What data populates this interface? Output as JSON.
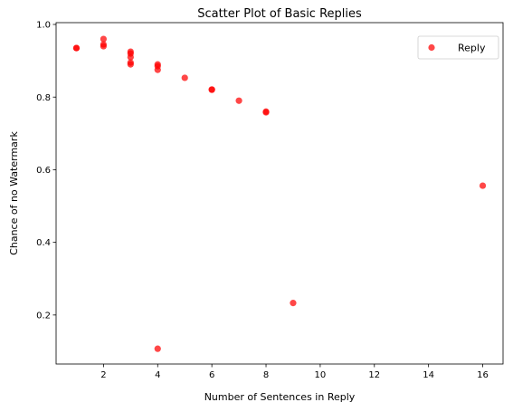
{
  "chart_data": {
    "type": "scatter",
    "title": "Scatter Plot of Basic Replies",
    "xlabel": "Number of Sentences in Reply",
    "ylabel": "Chance of no Watermark",
    "xlim": [
      0.25,
      16.75
    ],
    "ylim": [
      0.065,
      1.005
    ],
    "xticks": [
      2,
      4,
      6,
      8,
      10,
      12,
      14,
      16
    ],
    "yticks": [
      0.2,
      0.4,
      0.6,
      0.8,
      1.0
    ],
    "xtick_labels": [
      "2",
      "4",
      "6",
      "8",
      "10",
      "12",
      "14",
      "16"
    ],
    "ytick_labels": [
      "0.2",
      "0.4",
      "0.6",
      "0.8",
      "1.0"
    ],
    "grid": false,
    "legend": {
      "position": "top-right",
      "entries": [
        "Reply"
      ]
    },
    "series": [
      {
        "name": "Reply",
        "color": "#ff0000",
        "points": [
          {
            "x": 1,
            "y": 0.935
          },
          {
            "x": 1,
            "y": 0.935
          },
          {
            "x": 2,
            "y": 0.96
          },
          {
            "x": 2,
            "y": 0.945
          },
          {
            "x": 2,
            "y": 0.94
          },
          {
            "x": 3,
            "y": 0.925
          },
          {
            "x": 3,
            "y": 0.92
          },
          {
            "x": 3,
            "y": 0.91
          },
          {
            "x": 3,
            "y": 0.895
          },
          {
            "x": 3,
            "y": 0.89
          },
          {
            "x": 4,
            "y": 0.89
          },
          {
            "x": 4,
            "y": 0.885
          },
          {
            "x": 4,
            "y": 0.875
          },
          {
            "x": 4,
            "y": 0.107
          },
          {
            "x": 5,
            "y": 0.853
          },
          {
            "x": 6,
            "y": 0.821
          },
          {
            "x": 6,
            "y": 0.82
          },
          {
            "x": 7,
            "y": 0.79
          },
          {
            "x": 8,
            "y": 0.76
          },
          {
            "x": 8,
            "y": 0.758
          },
          {
            "x": 9,
            "y": 0.233
          },
          {
            "x": 16,
            "y": 0.556
          }
        ]
      }
    ]
  }
}
